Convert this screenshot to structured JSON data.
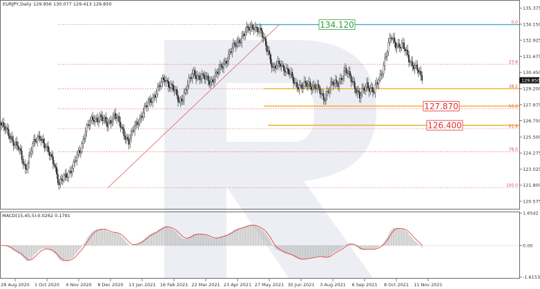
{
  "header": {
    "symbol": "EURJPY,Daily",
    "ohlc": "129.956 130.077 129.413 129.850"
  },
  "chart_data": {
    "type": "candlestick",
    "price_axis": {
      "ticks": [
        "135.375",
        "134.150",
        "132.925",
        "131.675",
        "130.450",
        "129.200",
        "127.975",
        "126.750",
        "125.500",
        "124.275",
        "123.025",
        "121.800",
        "120.575"
      ],
      "range": [
        120.1,
        135.9
      ],
      "current_price": "129.850"
    },
    "time_axis": {
      "labels": [
        "28 Aug 2020",
        "1 Oct 2020",
        "4 Nov 2020",
        "8 Dec 2020",
        "13 Jan 2021",
        "16 Feb 2021",
        "22 Mar 2021",
        "23 Apr 2021",
        "27 May 2021",
        "30 Jun 2021",
        "3 Aug 2021",
        "6 Sep 2021",
        "8 Oct 2021",
        "11 Nov 2021"
      ]
    },
    "fibonacci": {
      "levels": [
        {
          "label": "0.0",
          "price": 134.12
        },
        {
          "label": "23.6",
          "price": 131.07
        },
        {
          "label": "38.2",
          "price": 129.2
        },
        {
          "label": "50.0",
          "price": 127.67
        },
        {
          "label": "61.8",
          "price": 126.14
        },
        {
          "label": "76.0",
          "price": 124.37
        },
        {
          "label": "100.0",
          "price": 121.62
        }
      ]
    },
    "annotations": [
      {
        "text": "134.120",
        "price": 134.12,
        "color": "#2e9e3a"
      },
      {
        "text": "127.870",
        "price": 127.87,
        "color": "#e03030"
      },
      {
        "text": "126.400",
        "price": 126.4,
        "color": "#e03030"
      }
    ],
    "candles_anchor_closes": [
      [
        0,
        126.4
      ],
      [
        8,
        125.5
      ],
      [
        14,
        124.6
      ],
      [
        20,
        123.1
      ],
      [
        26,
        124.8
      ],
      [
        32,
        125.7
      ],
      [
        38,
        124.4
      ],
      [
        44,
        123.6
      ],
      [
        48,
        121.8
      ],
      [
        54,
        122.6
      ],
      [
        60,
        123.3
      ],
      [
        66,
        124.6
      ],
      [
        70,
        126.1
      ],
      [
        76,
        126.8
      ],
      [
        82,
        127.1
      ],
      [
        88,
        126.4
      ],
      [
        94,
        127.3
      ],
      [
        100,
        126.1
      ],
      [
        106,
        125.2
      ],
      [
        112,
        126.4
      ],
      [
        118,
        127.5
      ],
      [
        124,
        128.2
      ],
      [
        130,
        129.2
      ],
      [
        136,
        129.9
      ],
      [
        142,
        129.4
      ],
      [
        148,
        128.1
      ],
      [
        154,
        129.3
      ],
      [
        160,
        130.4
      ],
      [
        168,
        130.0
      ],
      [
        174,
        129.8
      ],
      [
        180,
        130.4
      ],
      [
        186,
        131.3
      ],
      [
        192,
        132.2
      ],
      [
        198,
        133.0
      ],
      [
        204,
        133.6
      ],
      [
        210,
        134.1
      ],
      [
        216,
        133.4
      ],
      [
        222,
        132.2
      ],
      [
        226,
        130.6
      ],
      [
        232,
        131.2
      ],
      [
        238,
        130.5
      ],
      [
        244,
        129.7
      ],
      [
        250,
        129.3
      ],
      [
        256,
        129.6
      ],
      [
        262,
        129.3
      ],
      [
        268,
        128.5
      ],
      [
        274,
        129.4
      ],
      [
        280,
        129.7
      ],
      [
        286,
        130.5
      ],
      [
        292,
        129.9
      ],
      [
        298,
        128.5
      ],
      [
        304,
        129.6
      ],
      [
        310,
        128.9
      ],
      [
        316,
        130.4
      ],
      [
        320,
        131.8
      ],
      [
        324,
        133.1
      ],
      [
        328,
        132.7
      ],
      [
        334,
        132.4
      ],
      [
        340,
        131.4
      ],
      [
        346,
        130.6
      ],
      [
        350,
        129.85
      ]
    ],
    "macd": {
      "label": "MACD(15,45,5)",
      "values_text": "-0.0262 0.1791",
      "ticks": [
        "1.6542",
        "0.00",
        "-1.6153"
      ],
      "range": [
        -1.62,
        1.66
      ]
    }
  }
}
